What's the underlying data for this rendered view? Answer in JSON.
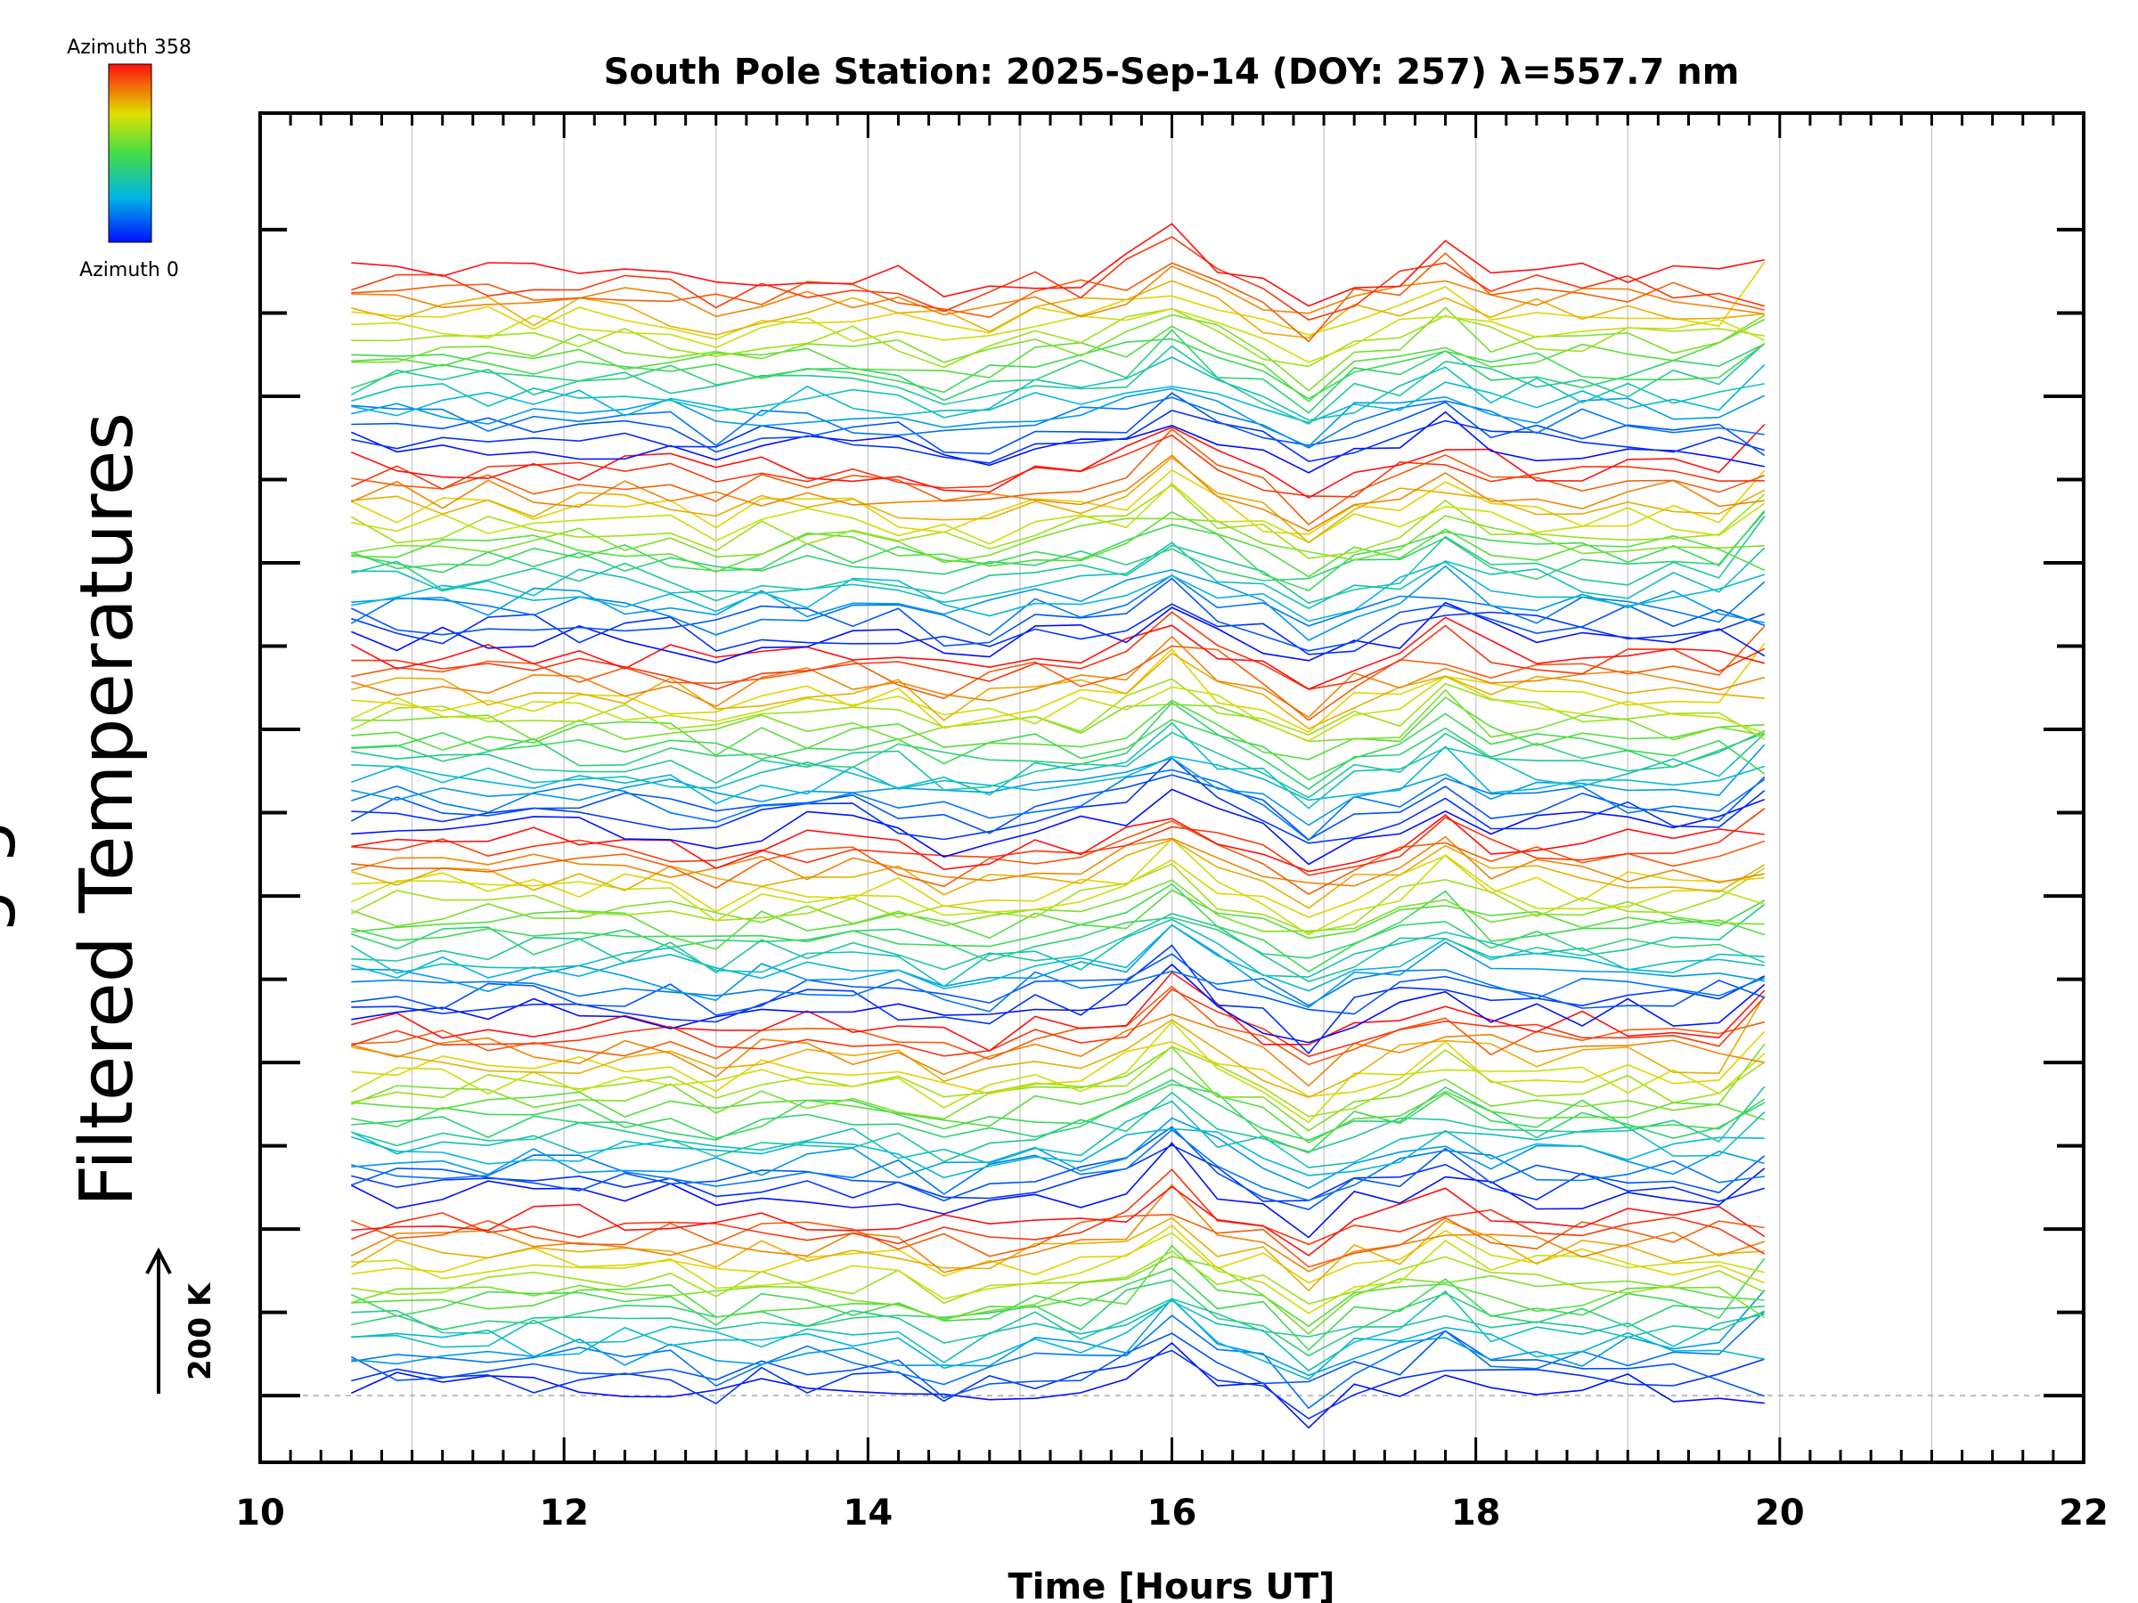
{
  "colors": {
    "axis": "#000000",
    "grid": "#cfcfcf",
    "baseline": "#aaaaaa",
    "background": "#ffffff"
  },
  "colorbar": {
    "top_label": "Azimuth 358",
    "bottom_label": "Azimuth 0",
    "min_azimuth": 0,
    "max_azimuth": 358
  },
  "scale_bar": {
    "label": "200 K",
    "arrow": "up-arrow-icon"
  },
  "chart_data": {
    "type": "line",
    "title": "South Pole Station: 2025-Sep-14 (DOY: 257) λ=557.7 nm",
    "xlabel": "Time [Hours UT]",
    "ylabel": "Filtered Temperatures",
    "ylabel_clipped_fragment": "g g",
    "xlim": [
      10,
      22
    ],
    "xticks": [
      10,
      12,
      14,
      16,
      18,
      20,
      22
    ],
    "xtick_labels": [
      "10",
      "12",
      "14",
      "16",
      "18",
      "20",
      "22"
    ],
    "grid": "vertical",
    "ylim_offset_units": [
      -0.8,
      15.4
    ],
    "y_major_tick_offsets": [
      0,
      2,
      4,
      6,
      8,
      10,
      12
    ],
    "y_minor_tick_offsets": [
      1,
      3,
      5,
      7,
      9,
      11,
      13,
      14
    ],
    "y_unit_kelvin_per_offset": 200,
    "time_start_h": 10.6,
    "time_end_h": 20.1,
    "time_step_h": 0.3,
    "num_bands": 6,
    "band_base_offsets": [
      0.1,
      2.4,
      4.6,
      6.85,
      9.1,
      11.4
    ],
    "band_spacing": 0.108,
    "traces_per_band": 20,
    "common_features": [
      {
        "time_h": 16.0,
        "amplitude": 0.55,
        "width_h": 0.25
      },
      {
        "time_h": 14.6,
        "amplitude": -0.25,
        "width_h": 0.3
      },
      {
        "time_h": 16.9,
        "amplitude": -0.45,
        "width_h": 0.25
      },
      {
        "time_h": 17.8,
        "amplitude": 0.35,
        "width_h": 0.2
      },
      {
        "time_h": 13.0,
        "amplitude": -0.2,
        "width_h": 0.2
      }
    ],
    "noise_amplitude": 0.18,
    "series_note": "~120 azimuth traces, stacked in 6 colour bands from azimuth 0 (blue) to 358 (red)"
  }
}
